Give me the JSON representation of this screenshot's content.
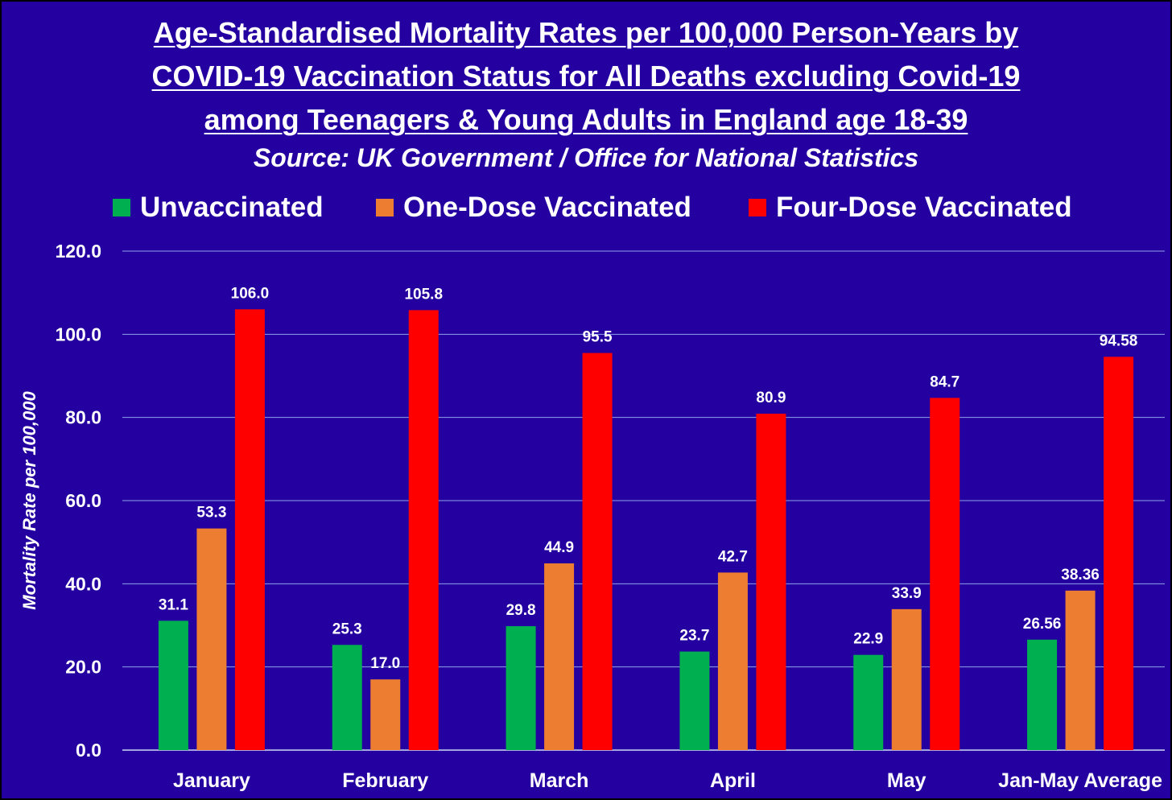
{
  "chart_data": {
    "type": "bar",
    "title": "Age-Standardised Mortality Rates per 100,000 Person-Years by COVID-19 Vaccination Status for All Deaths excluding Covid-19 among Teenagers & Young Adults in England age 18-39",
    "title_lines": [
      "Age-Standardised Mortality Rates per 100,000 Person-Years by",
      "COVID-19 Vaccination Status for All Deaths excluding Covid-19",
      "among Teenagers & Young Adults in England age 18-39"
    ],
    "subtitle": "Source: UK Government / Office for National Statistics",
    "xlabel": "",
    "ylabel": "Mortality Rate per 100,000",
    "ylim": [
      0,
      120
    ],
    "yticks": [
      "0.0",
      "20.0",
      "40.0",
      "60.0",
      "80.0",
      "100.0",
      "120.0"
    ],
    "grid": true,
    "legend_position": "top",
    "categories": [
      "January",
      "February",
      "March",
      "April",
      "May",
      "Jan-May Average"
    ],
    "series": [
      {
        "name": "Unvaccinated",
        "color": "#00b050",
        "values": [
          31.1,
          25.3,
          29.8,
          23.7,
          22.9,
          26.56
        ],
        "labels": [
          "31.1",
          "25.3",
          "29.8",
          "23.7",
          "22.9",
          "26.56"
        ]
      },
      {
        "name": "One-Dose Vaccinated",
        "color": "#ed7d31",
        "values": [
          53.3,
          17.0,
          44.9,
          42.7,
          33.9,
          38.36
        ],
        "labels": [
          "53.3",
          "17.0",
          "44.9",
          "42.7",
          "33.9",
          "38.36"
        ]
      },
      {
        "name": "Four-Dose Vaccinated",
        "color": "#ff0000",
        "values": [
          106.0,
          105.8,
          95.5,
          80.9,
          84.7,
          94.58
        ],
        "labels": [
          "106.0",
          "105.8",
          "95.5",
          "80.9",
          "84.7",
          "94.58"
        ]
      }
    ],
    "colors": {
      "background": "#2400a0",
      "text": "#ffffff",
      "gridline": "#8fa3e8"
    }
  }
}
